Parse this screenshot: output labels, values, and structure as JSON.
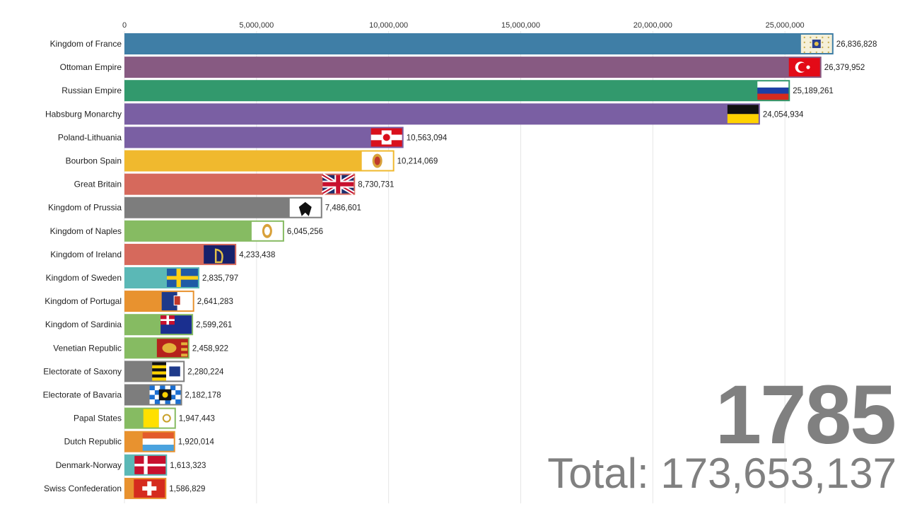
{
  "chart_data": {
    "type": "bar",
    "orientation": "horizontal",
    "title": "",
    "xlabel": "",
    "ylabel": "",
    "xlim": [
      0,
      27000000
    ],
    "x_ticks": [
      0,
      5000000,
      10000000,
      15000000,
      20000000,
      25000000
    ],
    "x_tick_labels": [
      "0",
      "5,000,000",
      "10,000,000",
      "15,000,000",
      "20,000,000",
      "25,000,000"
    ],
    "grid": true,
    "year": "1785",
    "total_label": "Total: 173,653,137",
    "bars": [
      {
        "name": "Kingdom of France",
        "value": 26836828,
        "label": "26,836,828",
        "color": "#3f7ea6",
        "flag": "france-royal-flag"
      },
      {
        "name": "Ottoman Empire",
        "value": 26379952,
        "label": "26,379,952",
        "color": "#875a82",
        "flag": "ottoman-flag"
      },
      {
        "name": "Russian Empire",
        "value": 25189261,
        "label": "25,189,261",
        "color": "#32996d",
        "flag": "russia-flag"
      },
      {
        "name": "Habsburg Monarchy",
        "value": 24054934,
        "label": "24,054,934",
        "color": "#7a5fa3",
        "flag": "habsburg-flag"
      },
      {
        "name": "Poland-Lithuania",
        "value": 10563094,
        "label": "10,563,094",
        "color": "#7a5fa3",
        "flag": "poland-lithuania-flag"
      },
      {
        "name": "Bourbon Spain",
        "value": 10214069,
        "label": "10,214,069",
        "color": "#f0b92e",
        "flag": "spain-flag"
      },
      {
        "name": "Great Britain",
        "value": 8730731,
        "label": "8,730,731",
        "color": "#d6695c",
        "flag": "great-britain-flag"
      },
      {
        "name": "Kingdom of Prussia",
        "value": 7486601,
        "label": "7,486,601",
        "color": "#7d7d7d",
        "flag": "prussia-flag"
      },
      {
        "name": "Kingdom of Naples",
        "value": 6045256,
        "label": "6,045,256",
        "color": "#86bb62",
        "flag": "naples-flag"
      },
      {
        "name": "Kingdom of Ireland",
        "value": 4233438,
        "label": "4,233,438",
        "color": "#d6695c",
        "flag": "ireland-flag"
      },
      {
        "name": "Kingdom of Sweden",
        "value": 2835797,
        "label": "2,835,797",
        "color": "#5bb8b6",
        "flag": "sweden-flag"
      },
      {
        "name": "Kingdom of Portugal",
        "value": 2641283,
        "label": "2,641,283",
        "color": "#e8922f",
        "flag": "portugal-flag"
      },
      {
        "name": "Kingdom of Sardinia",
        "value": 2599261,
        "label": "2,599,261",
        "color": "#86bb62",
        "flag": "sardinia-flag"
      },
      {
        "name": "Venetian Republic",
        "value": 2458922,
        "label": "2,458,922",
        "color": "#86bb62",
        "flag": "venice-flag"
      },
      {
        "name": "Electorate of Saxony",
        "value": 2280224,
        "label": "2,280,224",
        "color": "#7d7d7d",
        "flag": "saxony-flag"
      },
      {
        "name": "Electorate of Bavaria",
        "value": 2182178,
        "label": "2,182,178",
        "color": "#7d7d7d",
        "flag": "bavaria-flag"
      },
      {
        "name": "Papal States",
        "value": 1947443,
        "label": "1,947,443",
        "color": "#86bb62",
        "flag": "papal-states-flag"
      },
      {
        "name": "Dutch Republic",
        "value": 1920014,
        "label": "1,920,014",
        "color": "#e8922f",
        "flag": "dutch-flag"
      },
      {
        "name": "Denmark-Norway",
        "value": 1613323,
        "label": "1,613,323",
        "color": "#5bb8b6",
        "flag": "denmark-flag"
      },
      {
        "name": "Swiss Confederation",
        "value": 1586829,
        "label": "1,586,829",
        "color": "#e8922f",
        "flag": "swiss-flag"
      }
    ]
  }
}
